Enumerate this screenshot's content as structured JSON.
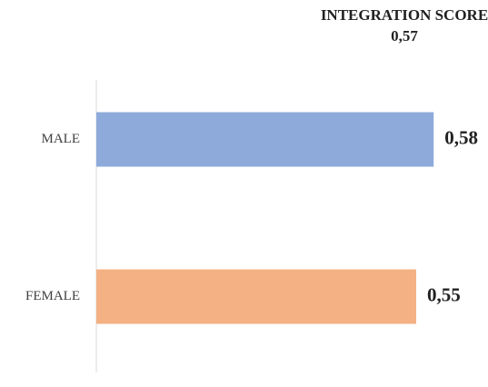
{
  "chart_data": {
    "type": "bar",
    "orientation": "horizontal",
    "title": "INTEGRATION SCORE",
    "subtitle": "0,57",
    "categories": [
      "MALE",
      "FEMALE"
    ],
    "values": [
      0.58,
      0.55
    ],
    "value_labels": [
      "0,58",
      "0,55"
    ],
    "colors": [
      "#8eaadb",
      "#f4b183"
    ],
    "xlim": [
      0,
      0.6
    ]
  }
}
